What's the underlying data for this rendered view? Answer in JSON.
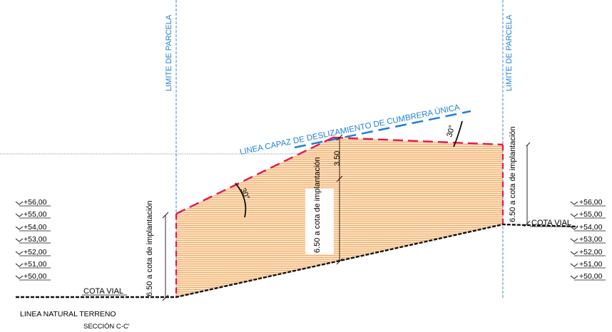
{
  "parcel_limits": {
    "left_label": "LIMITE DE PARCELA",
    "right_label": "LIMITE DE PARCELA"
  },
  "slip_line_label": "LINEA CAPAZ DE DESLIZAMIENTO DE CUMBRERA ÚNICA",
  "angle_label_left": "30°",
  "angle_label_right": "30°",
  "dim_left": "6.50  a  cota  de implantación",
  "dim_center_top": "3.50",
  "dim_center": "6.50  a  cota  de implantación",
  "dim_right": "6.50  a  cota  de implantación",
  "cota_vial_left": "COTA VIAL",
  "cota_vial_right": "COTA VIAL",
  "levels_left": [
    "+56,00",
    "+55,00",
    "+54,00",
    "+53,00",
    "+52,00",
    "+51,00",
    "+50,00"
  ],
  "levels_right": [
    "+56,00",
    "+55,00",
    "+54,00",
    "+53,00",
    "+52,00",
    "+51,00",
    "+50,00"
  ],
  "terrain_label": "LINEA  NATURAL TERRENO",
  "section_label": "SECCIÓN C-C'",
  "colors": {
    "accent_blue": "#1f7fd6",
    "envelope_red": "#e8164a",
    "fill_orange": "#f3b878"
  }
}
